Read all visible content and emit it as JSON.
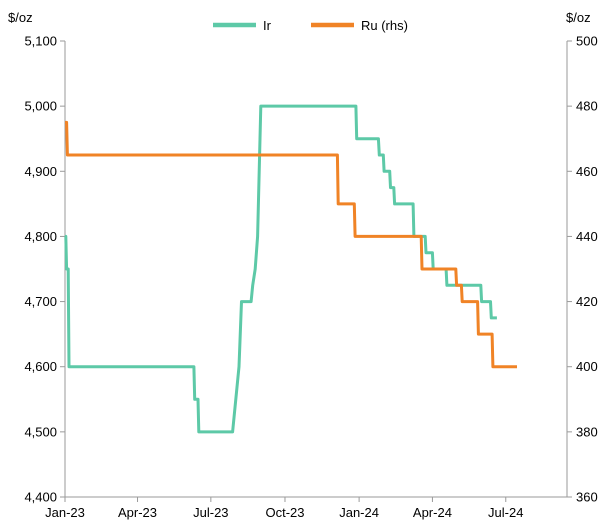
{
  "chart_data": {
    "type": "line",
    "left_unit": "$/oz",
    "right_unit": "$/oz",
    "left_axis": {
      "ylim": [
        4400,
        5100
      ],
      "ticks": [
        4400,
        4500,
        4600,
        4700,
        4800,
        4900,
        5000,
        5100
      ],
      "tick_labels": [
        "4,400",
        "4,500",
        "4,600",
        "4,700",
        "4,800",
        "4,900",
        "5,000",
        "5,100"
      ]
    },
    "right_axis": {
      "ylim": [
        360,
        500
      ],
      "ticks": [
        360,
        380,
        400,
        420,
        440,
        460,
        480,
        500
      ],
      "tick_labels": [
        "360",
        "380",
        "400",
        "420",
        "440",
        "460",
        "480",
        "500"
      ]
    },
    "x_axis": {
      "range": [
        "2023-01-01",
        "2024-09-15"
      ],
      "ticks": [
        "2023-01-01",
        "2023-04-01",
        "2023-07-01",
        "2023-10-01",
        "2024-01-01",
        "2024-04-01",
        "2024-07-01"
      ],
      "tick_labels": [
        "Jan-23",
        "Apr-23",
        "Jul-23",
        "Oct-23",
        "Jan-24",
        "Apr-24",
        "Jul-24"
      ]
    },
    "legend": {
      "position": "top-center"
    },
    "grid": false,
    "series": [
      {
        "name": "Ir",
        "axis": "left",
        "color": "#5dc9a7",
        "points": [
          [
            "2023-01-01",
            4800
          ],
          [
            "2023-01-02",
            4800
          ],
          [
            "2023-01-03",
            4750
          ],
          [
            "2023-01-05",
            4750
          ],
          [
            "2023-01-06",
            4600
          ],
          [
            "2023-06-10",
            4600
          ],
          [
            "2023-06-11",
            4550
          ],
          [
            "2023-06-15",
            4550
          ],
          [
            "2023-06-16",
            4500
          ],
          [
            "2023-07-28",
            4500
          ],
          [
            "2023-08-01",
            4550
          ],
          [
            "2023-08-05",
            4600
          ],
          [
            "2023-08-08",
            4700
          ],
          [
            "2023-08-20",
            4700
          ],
          [
            "2023-08-22",
            4725
          ],
          [
            "2023-08-25",
            4750
          ],
          [
            "2023-08-28",
            4800
          ],
          [
            "2023-09-01",
            5000
          ],
          [
            "2023-12-28",
            5000
          ],
          [
            "2023-12-29",
            4950
          ],
          [
            "2024-01-25",
            4950
          ],
          [
            "2024-01-26",
            4925
          ],
          [
            "2024-01-31",
            4925
          ],
          [
            "2024-02-01",
            4900
          ],
          [
            "2024-02-08",
            4900
          ],
          [
            "2024-02-09",
            4875
          ],
          [
            "2024-02-13",
            4875
          ],
          [
            "2024-02-14",
            4850
          ],
          [
            "2024-03-08",
            4850
          ],
          [
            "2024-03-09",
            4800
          ],
          [
            "2024-03-23",
            4800
          ],
          [
            "2024-03-24",
            4775
          ],
          [
            "2024-04-01",
            4775
          ],
          [
            "2024-04-02",
            4750
          ],
          [
            "2024-04-18",
            4750
          ],
          [
            "2024-04-19",
            4725
          ],
          [
            "2024-05-31",
            4725
          ],
          [
            "2024-06-01",
            4700
          ],
          [
            "2024-06-12",
            4700
          ],
          [
            "2024-06-13",
            4675
          ],
          [
            "2024-06-20",
            4675
          ]
        ]
      },
      {
        "name": "Ru (rhs)",
        "axis": "right",
        "color": "#f08326",
        "points": [
          [
            "2023-01-01",
            475
          ],
          [
            "2023-01-03",
            475
          ],
          [
            "2023-01-04",
            465
          ],
          [
            "2023-12-05",
            465
          ],
          [
            "2023-12-06",
            450
          ],
          [
            "2023-12-26",
            450
          ],
          [
            "2023-12-27",
            440
          ],
          [
            "2024-03-18",
            440
          ],
          [
            "2024-03-19",
            430
          ],
          [
            "2024-04-30",
            430
          ],
          [
            "2024-05-01",
            425
          ],
          [
            "2024-05-07",
            425
          ],
          [
            "2024-05-08",
            420
          ],
          [
            "2024-05-27",
            420
          ],
          [
            "2024-05-28",
            410
          ],
          [
            "2024-06-14",
            410
          ],
          [
            "2024-06-15",
            400
          ],
          [
            "2024-07-15",
            400
          ]
        ]
      }
    ]
  }
}
